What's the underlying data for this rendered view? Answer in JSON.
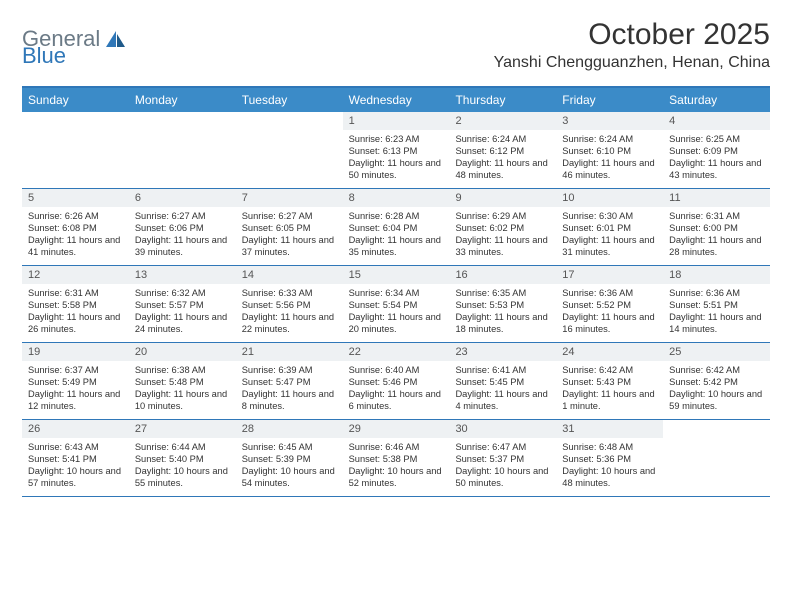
{
  "brand": {
    "word1": "General",
    "word2": "Blue"
  },
  "title": "October 2025",
  "location": "Yanshi Chengguanzhen, Henan, China",
  "colors": {
    "header_bg": "#3b8bc8",
    "border": "#2f77b8",
    "daynum_bg": "#eef1f3",
    "text": "#333333",
    "logo_gray": "#6b7a86",
    "logo_blue": "#2f77b8"
  },
  "day_labels": [
    "Sunday",
    "Monday",
    "Tuesday",
    "Wednesday",
    "Thursday",
    "Friday",
    "Saturday"
  ],
  "weeks": [
    [
      null,
      null,
      null,
      {
        "n": "1",
        "sunrise": "6:23 AM",
        "sunset": "6:13 PM",
        "daylight": "11 hours and 50 minutes."
      },
      {
        "n": "2",
        "sunrise": "6:24 AM",
        "sunset": "6:12 PM",
        "daylight": "11 hours and 48 minutes."
      },
      {
        "n": "3",
        "sunrise": "6:24 AM",
        "sunset": "6:10 PM",
        "daylight": "11 hours and 46 minutes."
      },
      {
        "n": "4",
        "sunrise": "6:25 AM",
        "sunset": "6:09 PM",
        "daylight": "11 hours and 43 minutes."
      }
    ],
    [
      {
        "n": "5",
        "sunrise": "6:26 AM",
        "sunset": "6:08 PM",
        "daylight": "11 hours and 41 minutes."
      },
      {
        "n": "6",
        "sunrise": "6:27 AM",
        "sunset": "6:06 PM",
        "daylight": "11 hours and 39 minutes."
      },
      {
        "n": "7",
        "sunrise": "6:27 AM",
        "sunset": "6:05 PM",
        "daylight": "11 hours and 37 minutes."
      },
      {
        "n": "8",
        "sunrise": "6:28 AM",
        "sunset": "6:04 PM",
        "daylight": "11 hours and 35 minutes."
      },
      {
        "n": "9",
        "sunrise": "6:29 AM",
        "sunset": "6:02 PM",
        "daylight": "11 hours and 33 minutes."
      },
      {
        "n": "10",
        "sunrise": "6:30 AM",
        "sunset": "6:01 PM",
        "daylight": "11 hours and 31 minutes."
      },
      {
        "n": "11",
        "sunrise": "6:31 AM",
        "sunset": "6:00 PM",
        "daylight": "11 hours and 28 minutes."
      }
    ],
    [
      {
        "n": "12",
        "sunrise": "6:31 AM",
        "sunset": "5:58 PM",
        "daylight": "11 hours and 26 minutes."
      },
      {
        "n": "13",
        "sunrise": "6:32 AM",
        "sunset": "5:57 PM",
        "daylight": "11 hours and 24 minutes."
      },
      {
        "n": "14",
        "sunrise": "6:33 AM",
        "sunset": "5:56 PM",
        "daylight": "11 hours and 22 minutes."
      },
      {
        "n": "15",
        "sunrise": "6:34 AM",
        "sunset": "5:54 PM",
        "daylight": "11 hours and 20 minutes."
      },
      {
        "n": "16",
        "sunrise": "6:35 AM",
        "sunset": "5:53 PM",
        "daylight": "11 hours and 18 minutes."
      },
      {
        "n": "17",
        "sunrise": "6:36 AM",
        "sunset": "5:52 PM",
        "daylight": "11 hours and 16 minutes."
      },
      {
        "n": "18",
        "sunrise": "6:36 AM",
        "sunset": "5:51 PM",
        "daylight": "11 hours and 14 minutes."
      }
    ],
    [
      {
        "n": "19",
        "sunrise": "6:37 AM",
        "sunset": "5:49 PM",
        "daylight": "11 hours and 12 minutes."
      },
      {
        "n": "20",
        "sunrise": "6:38 AM",
        "sunset": "5:48 PM",
        "daylight": "11 hours and 10 minutes."
      },
      {
        "n": "21",
        "sunrise": "6:39 AM",
        "sunset": "5:47 PM",
        "daylight": "11 hours and 8 minutes."
      },
      {
        "n": "22",
        "sunrise": "6:40 AM",
        "sunset": "5:46 PM",
        "daylight": "11 hours and 6 minutes."
      },
      {
        "n": "23",
        "sunrise": "6:41 AM",
        "sunset": "5:45 PM",
        "daylight": "11 hours and 4 minutes."
      },
      {
        "n": "24",
        "sunrise": "6:42 AM",
        "sunset": "5:43 PM",
        "daylight": "11 hours and 1 minute."
      },
      {
        "n": "25",
        "sunrise": "6:42 AM",
        "sunset": "5:42 PM",
        "daylight": "10 hours and 59 minutes."
      }
    ],
    [
      {
        "n": "26",
        "sunrise": "6:43 AM",
        "sunset": "5:41 PM",
        "daylight": "10 hours and 57 minutes."
      },
      {
        "n": "27",
        "sunrise": "6:44 AM",
        "sunset": "5:40 PM",
        "daylight": "10 hours and 55 minutes."
      },
      {
        "n": "28",
        "sunrise": "6:45 AM",
        "sunset": "5:39 PM",
        "daylight": "10 hours and 54 minutes."
      },
      {
        "n": "29",
        "sunrise": "6:46 AM",
        "sunset": "5:38 PM",
        "daylight": "10 hours and 52 minutes."
      },
      {
        "n": "30",
        "sunrise": "6:47 AM",
        "sunset": "5:37 PM",
        "daylight": "10 hours and 50 minutes."
      },
      {
        "n": "31",
        "sunrise": "6:48 AM",
        "sunset": "5:36 PM",
        "daylight": "10 hours and 48 minutes."
      },
      null
    ]
  ],
  "labels": {
    "sunrise": "Sunrise:",
    "sunset": "Sunset:",
    "daylight": "Daylight:"
  }
}
